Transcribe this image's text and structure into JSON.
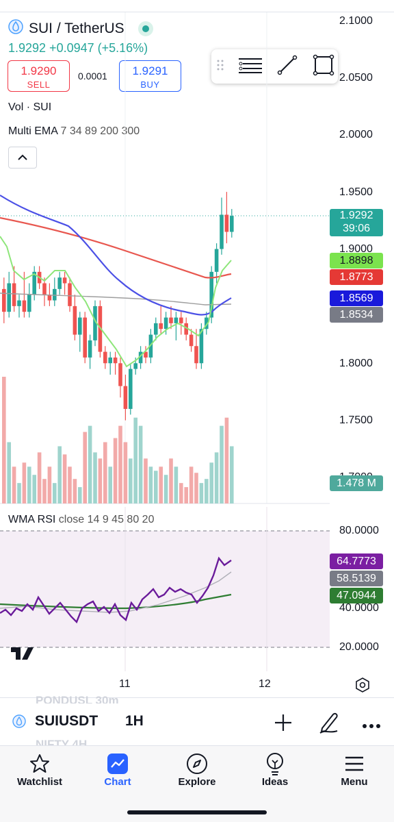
{
  "header": {
    "symbol_title": "SUI / TetherUS",
    "price_line": "1.9292 +0.0947 (+5.16%)",
    "sell": {
      "price": "1.9290",
      "label": "SELL"
    },
    "buy": {
      "price": "1.9291",
      "label": "BUY"
    },
    "spread": "0.0001"
  },
  "indicators": {
    "vol_label": "Vol · SUI",
    "ema_label": "Multi EMA",
    "ema_params": "7 34 89 200 300",
    "rsi_label": "WMA RSI",
    "rsi_params": "close 14 9 45 80 20"
  },
  "price_axis": {
    "labels": [
      "2.1000",
      "2.0500",
      "2.0000",
      "1.9500",
      "1.9000",
      "1.8000",
      "1.7500",
      "1.7000"
    ]
  },
  "tags": {
    "last_price": "1.9292",
    "countdown": "39:06",
    "ema7": "1.8898",
    "ema_red": "1.8773",
    "ema_blue": "1.8569",
    "ema_gray": "1.8534",
    "volume": "1.478 M"
  },
  "rsi_axis": {
    "labels": [
      "80.0000",
      "40.0000",
      "20.0000"
    ],
    "rsi_value": "64.7773",
    "wma_value": "58.5139",
    "ema_value": "47.0944"
  },
  "time_axis": {
    "labels": [
      "11",
      "12"
    ]
  },
  "colors": {
    "up": "#26a69a",
    "down": "#ef5350",
    "ema7": "#8ee67a",
    "ema_red": "#e8574f",
    "ema_blue": "#4b50e6",
    "ema_gray": "#9e9e9e",
    "rsi": "#7b1fa2",
    "rsi_ma": "#2e7d32"
  },
  "bottom_bar": {
    "ghost_top": "PONDUSL   30m",
    "ghost_bottom": "NIFTY   4H",
    "ticker": "SUIUSDT",
    "interval": "1H"
  },
  "nav": {
    "watchlist": "Watchlist",
    "chart": "Chart",
    "explore": "Explore",
    "ideas": "Ideas",
    "menu": "Menu"
  },
  "chart_data": {
    "type": "candlestick",
    "price_axis_range": [
      1.7,
      2.1
    ],
    "candles": [
      [
        1.865,
        1.875,
        1.835,
        1.845
      ],
      [
        1.845,
        1.88,
        1.84,
        1.87
      ],
      [
        1.87,
        1.885,
        1.845,
        1.85
      ],
      [
        1.85,
        1.86,
        1.84,
        1.855
      ],
      [
        1.855,
        1.88,
        1.84,
        1.845
      ],
      [
        1.845,
        1.87,
        1.84,
        1.86
      ],
      [
        1.86,
        1.885,
        1.855,
        1.88
      ],
      [
        1.88,
        1.885,
        1.865,
        1.87
      ],
      [
        1.87,
        1.875,
        1.85,
        1.86
      ],
      [
        1.86,
        1.87,
        1.85,
        1.855
      ],
      [
        1.855,
        1.875,
        1.85,
        1.865
      ],
      [
        1.865,
        1.88,
        1.86,
        1.875
      ],
      [
        1.875,
        1.88,
        1.86,
        1.87
      ],
      [
        1.87,
        1.875,
        1.845,
        1.85
      ],
      [
        1.85,
        1.86,
        1.82,
        1.825
      ],
      [
        1.825,
        1.845,
        1.81,
        1.84
      ],
      [
        1.84,
        1.845,
        1.8,
        1.805
      ],
      [
        1.805,
        1.825,
        1.795,
        1.82
      ],
      [
        1.82,
        1.855,
        1.815,
        1.85
      ],
      [
        1.85,
        1.855,
        1.805,
        1.81
      ],
      [
        1.81,
        1.815,
        1.795,
        1.8
      ],
      [
        1.8,
        1.81,
        1.79,
        1.805
      ],
      [
        1.805,
        1.81,
        1.79,
        1.8
      ],
      [
        1.8,
        1.805,
        1.77,
        1.78
      ],
      [
        1.78,
        1.79,
        1.75,
        1.76
      ],
      [
        1.76,
        1.8,
        1.755,
        1.795
      ],
      [
        1.795,
        1.805,
        1.79,
        1.8
      ],
      [
        1.8,
        1.815,
        1.795,
        1.81
      ],
      [
        1.81,
        1.815,
        1.8,
        1.805
      ],
      [
        1.805,
        1.83,
        1.8,
        1.825
      ],
      [
        1.825,
        1.84,
        1.82,
        1.835
      ],
      [
        1.835,
        1.85,
        1.825,
        1.83
      ],
      [
        1.83,
        1.845,
        1.825,
        1.84
      ],
      [
        1.84,
        1.85,
        1.83,
        1.835
      ],
      [
        1.835,
        1.845,
        1.82,
        1.84
      ],
      [
        1.84,
        1.845,
        1.825,
        1.835
      ],
      [
        1.835,
        1.84,
        1.82,
        1.825
      ],
      [
        1.825,
        1.83,
        1.81,
        1.815
      ],
      [
        1.815,
        1.83,
        1.795,
        1.8
      ],
      [
        1.8,
        1.835,
        1.795,
        1.83
      ],
      [
        1.83,
        1.845,
        1.825,
        1.84
      ],
      [
        1.84,
        1.885,
        1.835,
        1.88
      ],
      [
        1.88,
        1.905,
        1.87,
        1.9
      ],
      [
        1.9,
        1.945,
        1.895,
        1.93
      ],
      [
        1.93,
        1.95,
        1.905,
        1.915
      ],
      [
        1.915,
        1.935,
        1.91,
        1.929
      ]
    ],
    "volume": [
      62,
      30,
      18,
      10,
      20,
      18,
      14,
      25,
      12,
      18,
      10,
      28,
      24,
      18,
      12,
      8,
      35,
      38,
      25,
      22,
      30,
      18,
      32,
      38,
      30,
      22,
      42,
      38,
      22,
      18,
      16,
      18,
      14,
      22,
      18,
      10,
      8,
      18,
      15,
      10,
      12,
      20,
      25,
      38,
      42,
      28
    ]
  }
}
